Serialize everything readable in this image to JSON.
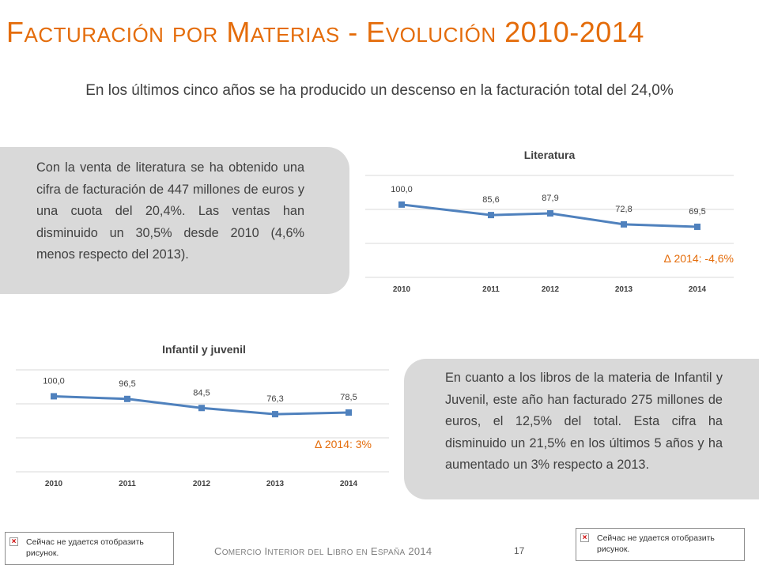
{
  "slide": {
    "title": "Facturación por Materias - Evolución 2010-2014",
    "subtitle": "En los últimos cinco años se ha producido un descenso en la facturación total del 24,0%",
    "footer": "Comercio Interior del Libro en España 2014",
    "page_number": "17"
  },
  "panels": {
    "left_text": "Con la venta de literatura se ha obtenido una cifra de facturación de 447 millones de euros y una cuota del 20,4%. Las ventas han disminuido un 30,5% desde 2010 (4,6% menos respecto del 2013).",
    "right_text": "En cuanto a los libros de la materia de Infantil y Juvenil, este año han facturado 275 millones de euros, el 12,5% del total. Esta cifra ha disminuido un 21,5% en los últimos 5 años y ha aumentado un 3% respecto a 2013."
  },
  "broken_images": [
    {
      "text": "Сейчас не удается отобразить рисунок."
    },
    {
      "text": "Сейчас не удается отобразить рисунок."
    }
  ],
  "chart_data": [
    {
      "type": "line",
      "title": "Literatura",
      "categories": [
        "2010",
        "2011",
        "2012",
        "2013",
        "2014"
      ],
      "values": [
        100.0,
        85.6,
        87.9,
        72.8,
        69.5
      ],
      "labels": [
        "100,0",
        "85,6",
        "87,9",
        "72,8",
        "69,5"
      ],
      "annotation": "∆ 2014: -4,6%",
      "ylim": [
        0,
        140
      ],
      "grid": true,
      "colors": {
        "line": "#4F81BD",
        "annotation": "#E46C0A",
        "grid": "#D9D9D9"
      }
    },
    {
      "type": "line",
      "title": "Infantil y juvenil",
      "categories": [
        "2010",
        "2011",
        "2012",
        "2013",
        "2014"
      ],
      "values": [
        100.0,
        96.5,
        84.5,
        76.3,
        78.5
      ],
      "labels": [
        "100,0",
        "96,5",
        "84,5",
        "76,3",
        "78,5"
      ],
      "annotation": "∆ 2014: 3%",
      "ylim": [
        0,
        135
      ],
      "grid": true,
      "colors": {
        "line": "#4F81BD",
        "annotation": "#E46C0A",
        "grid": "#D9D9D9"
      }
    }
  ]
}
